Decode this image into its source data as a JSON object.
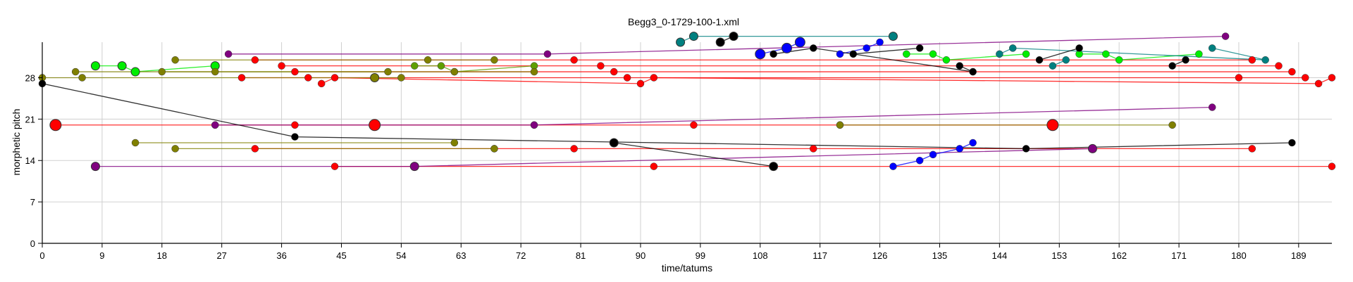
{
  "chart_data": {
    "type": "scatter",
    "title": "Begg3_0-1729-100-1.xml",
    "xlabel": "time/tatums",
    "ylabel": "morphetic pitch",
    "xlim": [
      0,
      194
    ],
    "ylim": [
      0,
      34
    ],
    "xticks": [
      0,
      9,
      18,
      27,
      36,
      45,
      54,
      63,
      72,
      81,
      90,
      99,
      108,
      117,
      126,
      135,
      144,
      153,
      162,
      171,
      180,
      189
    ],
    "yticks": [
      0,
      7,
      14,
      21,
      28
    ],
    "grid": true,
    "series": [
      {
        "color": "#ff0000",
        "points": [
          [
            2,
            20,
            8
          ],
          [
            26,
            20,
            5
          ],
          [
            38,
            20,
            5
          ],
          [
            50,
            20,
            8
          ],
          [
            74,
            20,
            5
          ],
          [
            98,
            20,
            5
          ],
          [
            120,
            20,
            5
          ],
          [
            152,
            20,
            8
          ]
        ]
      },
      {
        "color": "#ff0000",
        "points": [
          [
            32,
            16,
            5
          ],
          [
            68,
            16,
            5
          ],
          [
            80,
            16,
            5
          ],
          [
            116,
            16,
            5
          ],
          [
            158,
            16,
            5
          ],
          [
            182,
            16,
            5
          ]
        ]
      },
      {
        "color": "#ff0000",
        "points": [
          [
            44,
            13,
            5
          ],
          [
            56,
            13,
            5
          ],
          [
            92,
            13,
            5
          ],
          [
            194,
            13,
            5
          ]
        ]
      },
      {
        "color": "#ff0000",
        "points": [
          [
            32,
            31,
            5
          ],
          [
            80,
            31,
            5
          ],
          [
            182,
            31,
            5
          ]
        ]
      },
      {
        "color": "#ff0000",
        "points": [
          [
            36,
            30,
            5
          ],
          [
            84,
            30,
            5
          ],
          [
            186,
            30,
            5
          ]
        ]
      },
      {
        "color": "#ff0000",
        "points": [
          [
            38,
            29,
            5
          ],
          [
            86,
            29,
            5
          ],
          [
            188,
            29,
            5
          ]
        ]
      },
      {
        "color": "#ff0000",
        "points": [
          [
            30,
            28,
            5
          ],
          [
            40,
            28,
            5
          ],
          [
            88,
            28,
            5
          ],
          [
            180,
            28,
            5
          ],
          [
            190,
            28,
            5
          ]
        ]
      },
      {
        "color": "#ff0000",
        "points": [
          [
            42,
            27,
            5
          ],
          [
            44,
            28,
            5
          ],
          [
            90,
            27,
            5
          ],
          [
            92,
            28,
            5
          ],
          [
            192,
            27,
            5
          ],
          [
            194,
            28,
            5
          ]
        ]
      },
      {
        "color": "#00ee00",
        "points": [
          [
            8,
            30,
            6
          ],
          [
            12,
            30,
            6
          ],
          [
            14,
            29,
            6
          ],
          [
            26,
            30,
            6
          ]
        ]
      },
      {
        "color": "#5f9f00",
        "points": [
          [
            56,
            30,
            5
          ],
          [
            60,
            30,
            5
          ],
          [
            62,
            29,
            5
          ],
          [
            74,
            30,
            5
          ]
        ]
      },
      {
        "color": "#00ee00",
        "points": [
          [
            130,
            32,
            5
          ],
          [
            134,
            32,
            5
          ],
          [
            136,
            31,
            5
          ],
          [
            148,
            32,
            5
          ]
        ]
      },
      {
        "color": "#00ee00",
        "points": [
          [
            156,
            32,
            5
          ],
          [
            160,
            32,
            5
          ],
          [
            162,
            31,
            5
          ],
          [
            174,
            32,
            5
          ]
        ]
      },
      {
        "color": "#808000",
        "points": [
          [
            0,
            28,
            5
          ],
          [
            6,
            28,
            5
          ],
          [
            50,
            28,
            6
          ],
          [
            54,
            28,
            5
          ]
        ]
      },
      {
        "color": "#808000",
        "points": [
          [
            18,
            29,
            5
          ],
          [
            26,
            29,
            5
          ],
          [
            62,
            29,
            5
          ],
          [
            74,
            29,
            5
          ]
        ]
      },
      {
        "color": "#808000",
        "points": [
          [
            20,
            31,
            5
          ],
          [
            58,
            31,
            5
          ],
          [
            68,
            31,
            5
          ]
        ]
      },
      {
        "color": "#808000",
        "points": [
          [
            5,
            29,
            5
          ],
          [
            52,
            29,
            5
          ]
        ]
      },
      {
        "color": "#808000",
        "points": [
          [
            14,
            17,
            5
          ],
          [
            62,
            17,
            5
          ]
        ]
      },
      {
        "color": "#808000",
        "points": [
          [
            20,
            16,
            5
          ],
          [
            68,
            16,
            5
          ]
        ]
      },
      {
        "color": "#808000",
        "points": [
          [
            120,
            20,
            5
          ],
          [
            170,
            20,
            5
          ]
        ]
      },
      {
        "color": "#800080",
        "points": [
          [
            8,
            13,
            6
          ],
          [
            56,
            13,
            6
          ],
          [
            158,
            16,
            6
          ]
        ]
      },
      {
        "color": "#800080",
        "points": [
          [
            26,
            20,
            5
          ],
          [
            74,
            20,
            5
          ],
          [
            176,
            23,
            5
          ]
        ]
      },
      {
        "color": "#800080",
        "points": [
          [
            28,
            32,
            5
          ],
          [
            76,
            32,
            5
          ],
          [
            178,
            35,
            5
          ]
        ]
      },
      {
        "color": "#008080",
        "points": [
          [
            96,
            34,
            6
          ],
          [
            98,
            35,
            6
          ],
          [
            104,
            35,
            6
          ],
          [
            128,
            35,
            6
          ]
        ]
      },
      {
        "color": "#008080",
        "points": [
          [
            144,
            32,
            5
          ],
          [
            146,
            33,
            5
          ],
          [
            184,
            31,
            5
          ],
          [
            176,
            33,
            5
          ]
        ]
      },
      {
        "color": "#008080",
        "points": [
          [
            152,
            30,
            5
          ],
          [
            154,
            31,
            5
          ]
        ]
      },
      {
        "color": "#0000ff",
        "points": [
          [
            108,
            32,
            7
          ],
          [
            112,
            33,
            7
          ],
          [
            114,
            34,
            7
          ]
        ]
      },
      {
        "color": "#0000ff",
        "points": [
          [
            120,
            32,
            5
          ],
          [
            124,
            33,
            5
          ],
          [
            126,
            34,
            5
          ]
        ]
      },
      {
        "color": "#0000ff",
        "points": [
          [
            128,
            13,
            5
          ],
          [
            132,
            14,
            5
          ],
          [
            134,
            15,
            5
          ],
          [
            138,
            16,
            5
          ],
          [
            140,
            17,
            5
          ]
        ]
      },
      {
        "color": "#000000",
        "points": [
          [
            102,
            34,
            6
          ],
          [
            104,
            35,
            6
          ]
        ]
      },
      {
        "color": "#000000",
        "points": [
          [
            110,
            32,
            5
          ],
          [
            116,
            33,
            5
          ],
          [
            140,
            29,
            5
          ]
        ]
      },
      {
        "color": "#000000",
        "points": [
          [
            122,
            32,
            5
          ],
          [
            132,
            33,
            5
          ]
        ]
      },
      {
        "color": "#000000",
        "points": [
          [
            86,
            17,
            6
          ],
          [
            110,
            13,
            6
          ]
        ]
      },
      {
        "color": "#000000",
        "points": [
          [
            138,
            30,
            5
          ],
          [
            140,
            29,
            5
          ]
        ]
      },
      {
        "color": "#000000",
        "points": [
          [
            150,
            31,
            5
          ],
          [
            156,
            33,
            5
          ]
        ]
      },
      {
        "color": "#000000",
        "points": [
          [
            170,
            30,
            5
          ],
          [
            172,
            31,
            5
          ]
        ]
      },
      {
        "color": "#000000",
        "points": [
          [
            0,
            27,
            5
          ],
          [
            38,
            18,
            5
          ],
          [
            148,
            16,
            5
          ],
          [
            188,
            17,
            5
          ]
        ]
      }
    ]
  }
}
